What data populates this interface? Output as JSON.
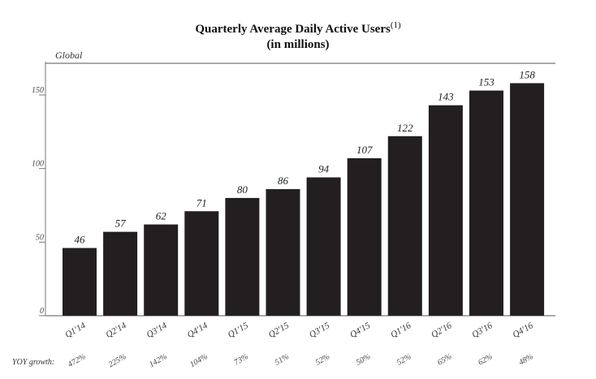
{
  "chart_data": {
    "type": "bar",
    "title": "Quarterly Average Daily Active Users",
    "title_footnote": "(1)",
    "subtitle": "(in millions)",
    "panel_label": "Global",
    "categories": [
      "Q1'14",
      "Q2'14",
      "Q3'14",
      "Q4'14",
      "Q1'15",
      "Q2'15",
      "Q3'15",
      "Q4'15",
      "Q1'16",
      "Q2'16",
      "Q3'16",
      "Q4'16"
    ],
    "values": [
      46,
      57,
      62,
      71,
      80,
      86,
      94,
      107,
      122,
      143,
      153,
      158
    ],
    "data_labels": [
      "46",
      "57",
      "62",
      "71",
      "80",
      "86",
      "94",
      "107",
      "122",
      "143",
      "153",
      "158"
    ],
    "yoy_label": "YOY growth:",
    "yoy_growth": [
      "472%",
      "225%",
      "142%",
      "104%",
      "73%",
      "51%",
      "52%",
      "50%",
      "52%",
      "65%",
      "62%",
      "48%"
    ],
    "y_ticks": [
      0,
      50,
      100,
      150
    ],
    "ylim": [
      0,
      160
    ],
    "bar_color": "#231f20",
    "grid": false
  }
}
